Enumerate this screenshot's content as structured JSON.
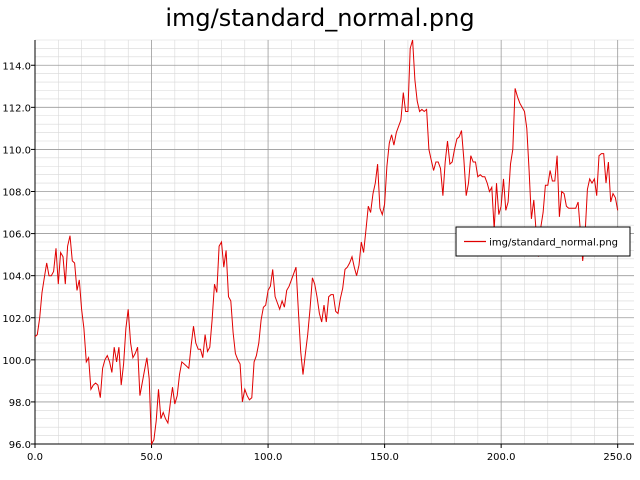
{
  "chart_data": {
    "type": "line",
    "title": "img/standard_normal.png",
    "xlabel": "",
    "ylabel": "",
    "xlim": [
      0,
      257
    ],
    "ylim": [
      96,
      115.2
    ],
    "grid": true,
    "legend_placement": "right",
    "x_ticks": [
      0,
      50,
      100,
      150,
      200,
      250
    ],
    "x_tick_labels": [
      "0.0",
      "50.0",
      "100.0",
      "150.0",
      "200.0",
      "250.0"
    ],
    "y_ticks": [
      96,
      98,
      100,
      102,
      104,
      106,
      108,
      110,
      112,
      114
    ],
    "y_tick_labels": [
      "96.0",
      "98.0",
      "100.0",
      "102.0",
      "104.0",
      "106.0",
      "108.0",
      "110.0",
      "112.0",
      "114.0"
    ],
    "colors": {
      "series": "#e00000",
      "grid_major": "#9a9a9a",
      "grid_minor": "#d8d8d8"
    },
    "series": [
      {
        "name": "img/standard_normal.png",
        "y": [
          101.1,
          101.2,
          102.0,
          103.2,
          103.9,
          104.6,
          104.0,
          104.0,
          104.2,
          105.3,
          103.6,
          105.1,
          104.9,
          103.6,
          105.4,
          105.9,
          104.7,
          104.6,
          103.3,
          103.8,
          102.4,
          101.5,
          99.9,
          100.1,
          98.6,
          98.8,
          98.9,
          98.8,
          98.2,
          99.6,
          100.0,
          100.2,
          99.9,
          99.4,
          100.6,
          99.9,
          100.6,
          98.8,
          99.8,
          101.5,
          102.4,
          100.8,
          100.1,
          100.3,
          100.6,
          98.3,
          98.9,
          99.5,
          100.1,
          99.1,
          96.0,
          96.2,
          97.1,
          98.6,
          97.2,
          97.5,
          97.2,
          97.0,
          97.9,
          98.7,
          97.9,
          98.3,
          99.3,
          99.9,
          99.8,
          99.7,
          99.6,
          100.7,
          101.6,
          100.8,
          100.5,
          100.5,
          100.1,
          101.2,
          100.4,
          100.6,
          101.9,
          103.6,
          103.2,
          105.4,
          105.6,
          104.4,
          105.2,
          103.0,
          102.8,
          101.3,
          100.3,
          100.0,
          99.8,
          98.0,
          98.6,
          98.3,
          98.1,
          98.2,
          99.9,
          100.2,
          100.8,
          101.9,
          102.5,
          102.6,
          103.3,
          103.5,
          104.3,
          103.0,
          102.7,
          102.4,
          102.8,
          102.5,
          103.3,
          103.5,
          103.8,
          104.1,
          104.4,
          102.3,
          100.4,
          99.3,
          100.3,
          101.2,
          102.4,
          103.9,
          103.6,
          103.0,
          102.2,
          101.8,
          102.6,
          101.8,
          103.0,
          103.1,
          103.1,
          102.3,
          102.2,
          102.9,
          103.4,
          104.3,
          104.4,
          104.6,
          104.9,
          104.4,
          104.0,
          104.5,
          105.6,
          105.1,
          106.2,
          107.3,
          107.0,
          107.9,
          108.4,
          109.3,
          107.2,
          106.9,
          107.4,
          109.2,
          110.3,
          110.7,
          110.2,
          110.8,
          111.1,
          111.4,
          112.7,
          111.8,
          111.8,
          114.8,
          115.2,
          113.3,
          112.3,
          111.8,
          111.9,
          111.8,
          111.9,
          110.0,
          109.5,
          109.0,
          109.4,
          109.4,
          109.1,
          107.8,
          109.4,
          110.4,
          109.3,
          109.4,
          110.0,
          110.5,
          110.6,
          110.9,
          109.5,
          107.8,
          108.4,
          109.7,
          109.4,
          109.4,
          108.7,
          108.8,
          108.7,
          108.7,
          108.4,
          108.0,
          108.2,
          106.2,
          108.4,
          106.9,
          107.3,
          108.6,
          107.1,
          107.5,
          109.3,
          110.0,
          112.9,
          112.5,
          112.2,
          112.0,
          111.8,
          111.0,
          109.0,
          106.7,
          107.6,
          106.1,
          104.9,
          106.3,
          107.0,
          108.3,
          108.3,
          109.0,
          108.5,
          108.5,
          109.7,
          106.8,
          108.0,
          107.9,
          107.3,
          107.2,
          107.2,
          107.2,
          107.2,
          107.5,
          106.1,
          104.7,
          106.0,
          108.1,
          108.6,
          108.4,
          108.6,
          107.8,
          109.7,
          109.8,
          109.8,
          108.4,
          109.4,
          107.5,
          107.9,
          107.7,
          107.1
        ]
      }
    ]
  }
}
